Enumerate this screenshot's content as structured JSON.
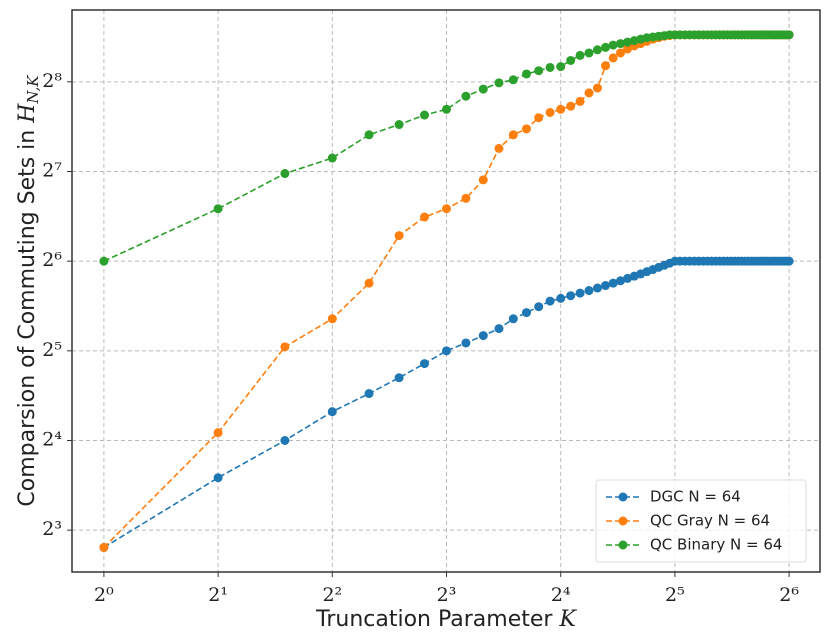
{
  "chart_data": {
    "type": "line",
    "x_label": "Truncation Parameter",
    "x_label_math": "K",
    "y_label": "Comparsion of Commuting Sets in",
    "y_label_math": "H",
    "y_label_sub": "N,K",
    "x": [
      1,
      2,
      3,
      4,
      5,
      6,
      7,
      8,
      9,
      10,
      11,
      12,
      13,
      14,
      15,
      16,
      17,
      18,
      19,
      20,
      21,
      22,
      23,
      24,
      25,
      26,
      27,
      28,
      29,
      30,
      31,
      32,
      33,
      34,
      35,
      36,
      37,
      38,
      39,
      40,
      41,
      42,
      43,
      44,
      45,
      46,
      47,
      48,
      49,
      50,
      51,
      52,
      53,
      54,
      55,
      56,
      57,
      58,
      59,
      60,
      61,
      62,
      63,
      64
    ],
    "series": [
      {
        "name": "DGC N = 64",
        "color": "#1f77b4",
        "values": [
          7,
          12,
          16,
          20,
          23,
          26,
          29,
          32,
          34,
          36,
          38,
          41,
          43,
          45,
          47,
          48,
          49,
          50,
          51,
          52,
          53,
          54,
          55,
          56,
          57,
          58,
          59,
          60,
          61,
          62,
          63,
          64,
          64,
          64,
          64,
          64,
          64,
          64,
          64,
          64,
          64,
          64,
          64,
          64,
          64,
          64,
          64,
          64,
          64,
          64,
          64,
          64,
          64,
          64,
          64,
          64,
          64,
          64,
          64,
          64,
          64,
          64,
          64,
          64
        ]
      },
      {
        "name": "QC Gray N = 64",
        "color": "#ff7f0e",
        "values": [
          7,
          17,
          33,
          41,
          54,
          78,
          90,
          96,
          104,
          120,
          153,
          170,
          178,
          194,
          202,
          207,
          212,
          220,
          235,
          244,
          290,
          308,
          320,
          330,
          338,
          344,
          350,
          356,
          360,
          364,
          366,
          368,
          368,
          368,
          368,
          368,
          368,
          368,
          368,
          368,
          368,
          368,
          368,
          368,
          368,
          368,
          368,
          368,
          368,
          368,
          368,
          368,
          368,
          368,
          368,
          368,
          368,
          368,
          368,
          368,
          368,
          368,
          368,
          368
        ]
      },
      {
        "name": "QC Binary N = 64",
        "color": "#2ca02c",
        "values": [
          64,
          96,
          126,
          142,
          170,
          184,
          198,
          207,
          229,
          242,
          254,
          260,
          272,
          279,
          286,
          288,
          302,
          314,
          320,
          328,
          334,
          340,
          344,
          348,
          352,
          356,
          360,
          362,
          364,
          366,
          368,
          368,
          368,
          368,
          368,
          368,
          368,
          368,
          368,
          368,
          368,
          368,
          368,
          368,
          368,
          368,
          368,
          368,
          368,
          368,
          368,
          368,
          368,
          368,
          368,
          368,
          368,
          368,
          368,
          368,
          368,
          368,
          368,
          368
        ]
      }
    ],
    "x_scale": "log2",
    "y_scale": "log2",
    "xlim": [
      0.824,
      77.2
    ],
    "ylim": [
      5.79,
      446
    ],
    "xticks": [
      {
        "value": 1,
        "label": "2⁰"
      },
      {
        "value": 2,
        "label": "2¹"
      },
      {
        "value": 4,
        "label": "2²"
      },
      {
        "value": 8,
        "label": "2³"
      },
      {
        "value": 16,
        "label": "2⁴"
      },
      {
        "value": 32,
        "label": "2⁵"
      },
      {
        "value": 64,
        "label": "2⁶"
      }
    ],
    "yticks": [
      {
        "value": 8,
        "label": "2³"
      },
      {
        "value": 16,
        "label": "2⁴"
      },
      {
        "value": 32,
        "label": "2⁵"
      },
      {
        "value": 64,
        "label": "2⁶"
      },
      {
        "value": 128,
        "label": "2⁷"
      },
      {
        "value": 256,
        "label": "2⁸"
      }
    ],
    "grid": true,
    "legend": "lower right"
  }
}
